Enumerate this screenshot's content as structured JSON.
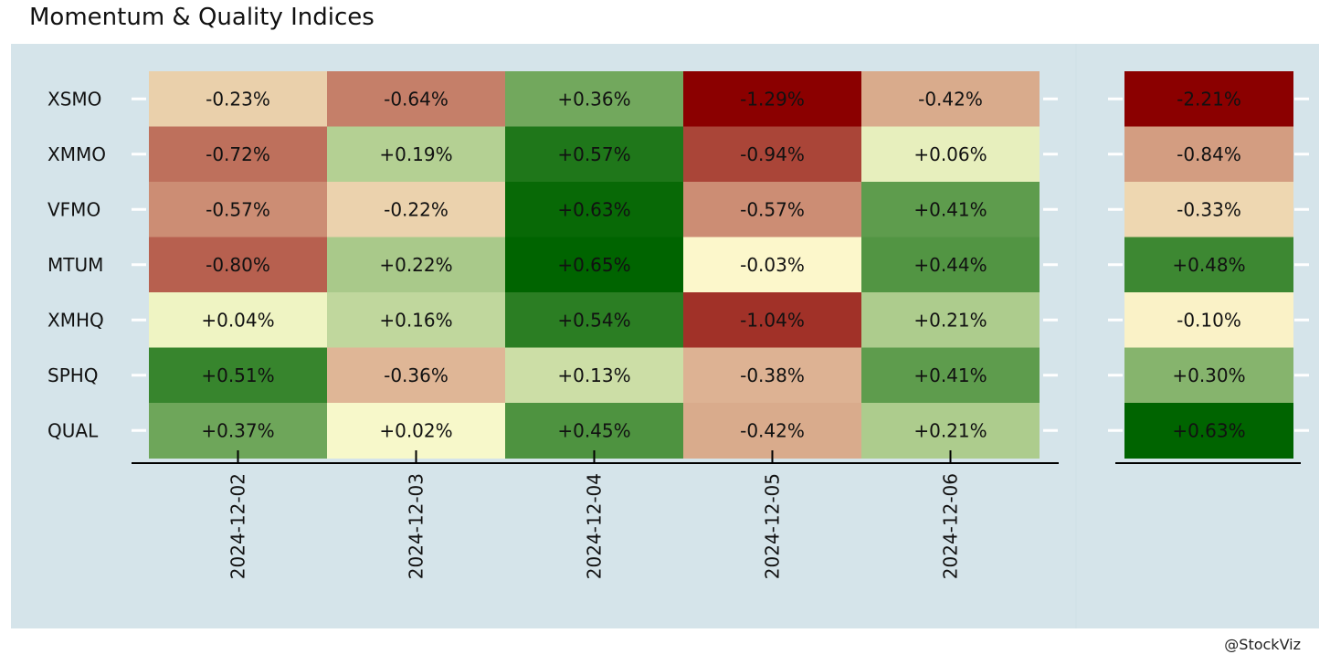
{
  "page": {
    "title": "Momentum & Quality Indices",
    "watermark": "@StockViz"
  },
  "chart_data": {
    "type": "heatmap",
    "title": "Momentum & Quality Indices",
    "xlabel": "",
    "ylabel": "",
    "rows": [
      "XSMO",
      "XMMO",
      "VFMO",
      "MTUM",
      "XMHQ",
      "SPHQ",
      "QUAL"
    ],
    "columns": [
      "2024-12-02",
      "2024-12-03",
      "2024-12-04",
      "2024-12-05",
      "2024-12-06"
    ],
    "values": [
      [
        -0.23,
        -0.64,
        0.36,
        -1.29,
        -0.42
      ],
      [
        -0.72,
        0.19,
        0.57,
        -0.94,
        0.06
      ],
      [
        -0.57,
        -0.22,
        0.63,
        -0.57,
        0.41
      ],
      [
        -0.8,
        0.22,
        0.65,
        -0.03,
        0.44
      ],
      [
        0.04,
        0.16,
        0.54,
        -1.04,
        0.21
      ],
      [
        0.51,
        -0.36,
        0.13,
        -0.38,
        0.41
      ],
      [
        0.37,
        0.02,
        0.45,
        -0.42,
        0.21
      ]
    ],
    "labels": [
      [
        "-0.23%",
        "-0.64%",
        "+0.36%",
        "-1.29%",
        "-0.42%"
      ],
      [
        "-0.72%",
        "+0.19%",
        "+0.57%",
        "-0.94%",
        "+0.06%"
      ],
      [
        "-0.57%",
        "-0.22%",
        "+0.63%",
        "-0.57%",
        "+0.41%"
      ],
      [
        "-0.80%",
        "+0.22%",
        "+0.65%",
        "-0.03%",
        "+0.44%"
      ],
      [
        "+0.04%",
        "+0.16%",
        "+0.54%",
        "-1.04%",
        "+0.21%"
      ],
      [
        "+0.51%",
        "-0.36%",
        "+0.13%",
        "-0.38%",
        "+0.41%"
      ],
      [
        "+0.37%",
        "+0.02%",
        "+0.45%",
        "-0.42%",
        "+0.21%"
      ]
    ],
    "cumulative": {
      "values": [
        -2.21,
        -0.84,
        -0.33,
        0.48,
        -0.1,
        0.3,
        0.63
      ],
      "labels": [
        "-2.21%",
        "-0.84%",
        "-0.33%",
        "+0.48%",
        "-0.10%",
        "+0.30%",
        "+0.63%"
      ]
    },
    "colors": {
      "negative_extreme": "#8b0000",
      "neutral": "#fffdd0",
      "positive_extreme": "#006400",
      "panel_background": "#d5e4ea"
    },
    "grid": false,
    "legend": "none"
  }
}
